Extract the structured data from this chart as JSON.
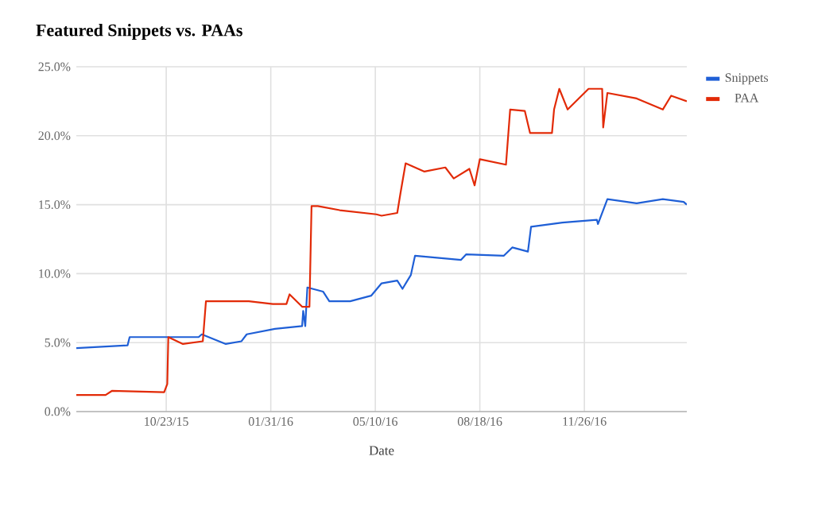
{
  "chart_data": {
    "type": "line",
    "title": "Featured Snippets vs. PAAs",
    "xlabel": "Date",
    "xlim": [
      "2015-07-29",
      "2017-03-04"
    ],
    "xticks": [
      {
        "value": "2015-10-23",
        "label": "10/23/15"
      },
      {
        "value": "2016-01-31",
        "label": "01/31/16"
      },
      {
        "value": "2016-05-10",
        "label": "05/10/16"
      },
      {
        "value": "2016-08-18",
        "label": "08/18/16"
      },
      {
        "value": "2016-11-26",
        "label": "11/26/16"
      }
    ],
    "ylim": [
      0,
      25
    ],
    "yticks": [
      {
        "value": 0,
        "label": "0.0%"
      },
      {
        "value": 5,
        "label": "5.0%"
      },
      {
        "value": 10,
        "label": "10.0%"
      },
      {
        "value": 15,
        "label": "15.0%"
      },
      {
        "value": 20,
        "label": "20.0%"
      },
      {
        "value": 25,
        "label": "25.0%"
      }
    ],
    "grid": true,
    "legend": "top right",
    "series": [
      {
        "name": "Snippets",
        "color": "#1f5fd6",
        "x": [
          "2015-07-29",
          "2015-09-16",
          "2015-09-18",
          "2015-11-23",
          "2015-11-26",
          "2015-12-19",
          "2016-01-03",
          "2016-01-08",
          "2016-02-04",
          "2016-03-01",
          "2016-03-02",
          "2016-03-04",
          "2016-03-06",
          "2016-03-21",
          "2016-03-27",
          "2016-04-16",
          "2016-05-06",
          "2016-05-16",
          "2016-05-31",
          "2016-06-05",
          "2016-06-13",
          "2016-06-17",
          "2016-07-31",
          "2016-08-05",
          "2016-09-10",
          "2016-09-18",
          "2016-10-03",
          "2016-10-06",
          "2016-11-05",
          "2016-12-08",
          "2016-12-09",
          "2016-12-18",
          "2017-01-15",
          "2017-02-09",
          "2017-03-01",
          "2017-03-04"
        ],
        "values": [
          4.6,
          4.8,
          5.4,
          5.4,
          5.6,
          4.9,
          5.1,
          5.6,
          6.0,
          6.2,
          7.3,
          6.2,
          9.0,
          8.7,
          8.0,
          8.0,
          8.4,
          9.3,
          9.5,
          8.9,
          9.9,
          11.3,
          11.0,
          11.4,
          11.3,
          11.9,
          11.6,
          13.4,
          13.7,
          13.9,
          13.6,
          15.4,
          15.1,
          15.4,
          15.2,
          15.0
        ]
      },
      {
        "name": "PAA",
        "color": "#e22a07",
        "x": [
          "2015-07-29",
          "2015-08-26",
          "2015-09-01",
          "2015-10-21",
          "2015-10-24",
          "2015-10-25",
          "2015-11-08",
          "2015-11-27",
          "2015-11-30",
          "2016-01-10",
          "2016-02-02",
          "2016-02-15",
          "2016-02-18",
          "2016-03-01",
          "2016-03-08",
          "2016-03-10",
          "2016-03-16",
          "2016-04-06",
          "2016-05-11",
          "2016-05-16",
          "2016-05-31",
          "2016-06-03",
          "2016-06-08",
          "2016-06-26",
          "2016-07-16",
          "2016-07-24",
          "2016-08-08",
          "2016-08-13",
          "2016-08-18",
          "2016-09-12",
          "2016-09-16",
          "2016-09-30",
          "2016-10-05",
          "2016-10-26",
          "2016-10-28",
          "2016-11-02",
          "2016-11-10",
          "2016-11-30",
          "2016-12-13",
          "2016-12-14",
          "2016-12-18",
          "2017-01-15",
          "2017-02-09",
          "2017-02-17",
          "2017-03-04"
        ],
        "values": [
          1.2,
          1.2,
          1.5,
          1.4,
          2.0,
          5.4,
          4.9,
          5.1,
          8.0,
          8.0,
          7.8,
          7.8,
          8.5,
          7.6,
          7.6,
          14.9,
          14.9,
          14.6,
          14.3,
          14.2,
          14.4,
          15.8,
          18.0,
          17.4,
          17.7,
          16.9,
          17.6,
          16.4,
          18.3,
          17.9,
          21.9,
          21.8,
          20.2,
          20.2,
          21.9,
          23.4,
          21.9,
          23.4,
          23.4,
          20.6,
          23.1,
          22.7,
          21.9,
          22.9,
          22.5
        ]
      }
    ]
  }
}
